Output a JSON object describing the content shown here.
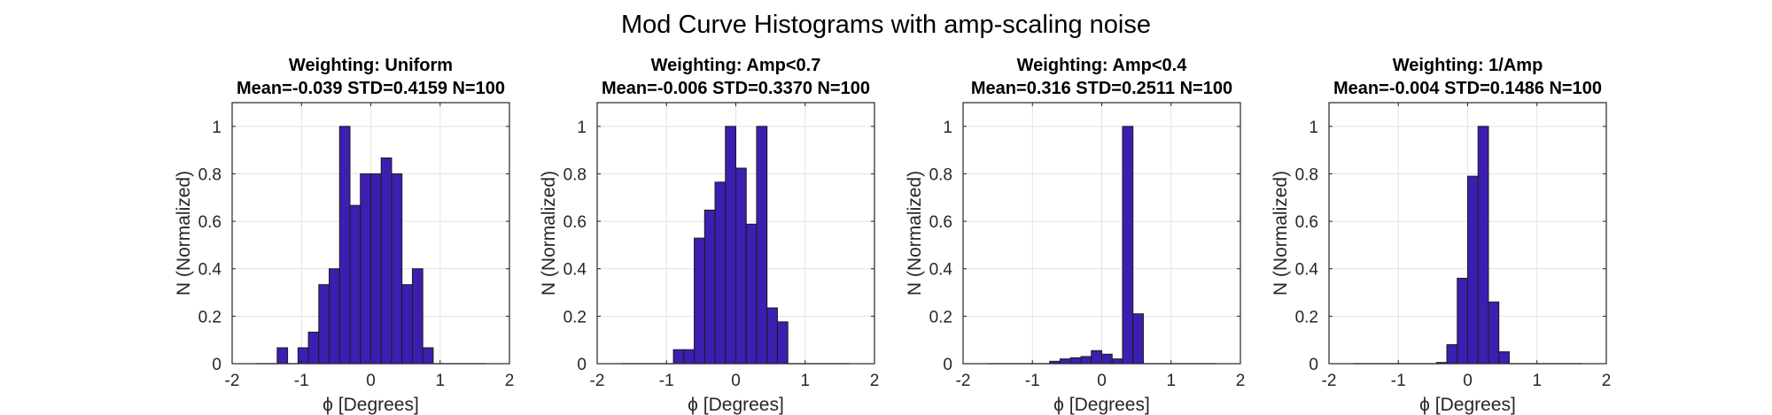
{
  "figure": {
    "title": "Mod Curve Histograms with amp-scaling noise",
    "bar_color": "#3c1fb0",
    "bar_edge": "#1a1a1a"
  },
  "chart_data": [
    {
      "type": "bar",
      "title_line1": "Weighting: Uniform",
      "title_line2": "Mean=-0.039 STD=0.4159 N=100",
      "xlabel": "ϕ [Degrees]",
      "ylabel": "N (Normalized)",
      "xlim": [
        -2,
        2
      ],
      "ylim": [
        0,
        1.1
      ],
      "xticks": [
        "-2",
        "-1",
        "0",
        "1",
        "2"
      ],
      "yticks": [
        "0",
        "0.2",
        "0.4",
        "0.6",
        "0.8",
        "1"
      ],
      "grid": true,
      "bin_edges": [
        -1.65,
        -1.5,
        -1.35,
        -1.2,
        -1.05,
        -0.9,
        -0.75,
        -0.6,
        -0.45,
        -0.3,
        -0.15,
        0.0,
        0.15,
        0.3,
        0.45,
        0.6,
        0.75,
        0.9,
        1.05,
        1.2,
        1.35,
        1.5,
        1.65
      ],
      "values": [
        0,
        0,
        0.067,
        0,
        0.067,
        0.133,
        0.333,
        0.4,
        1.0,
        0.667,
        0.8,
        0.8,
        0.867,
        0.8,
        0.333,
        0.4,
        0.067,
        0,
        0,
        0,
        0,
        0
      ]
    },
    {
      "type": "bar",
      "title_line1": "Weighting: Amp<0.7",
      "title_line2": "Mean=-0.006 STD=0.3370 N=100",
      "xlabel": "ϕ [Degrees]",
      "ylabel": "N (Normalized)",
      "xlim": [
        -2,
        2
      ],
      "ylim": [
        0,
        1.1
      ],
      "xticks": [
        "-2",
        "-1",
        "0",
        "1",
        "2"
      ],
      "yticks": [
        "0",
        "0.2",
        "0.4",
        "0.6",
        "0.8",
        "1"
      ],
      "grid": true,
      "bin_edges": [
        -1.65,
        -1.5,
        -1.35,
        -1.2,
        -1.05,
        -0.9,
        -0.75,
        -0.6,
        -0.45,
        -0.3,
        -0.15,
        0.0,
        0.15,
        0.3,
        0.45,
        0.6,
        0.75,
        0.9,
        1.05,
        1.2,
        1.35,
        1.5,
        1.65
      ],
      "values": [
        0,
        0,
        0,
        0,
        0,
        0.059,
        0.059,
        0.529,
        0.647,
        0.765,
        1.0,
        0.824,
        0.588,
        1.0,
        0.235,
        0.176,
        0,
        0,
        0,
        0,
        0,
        0
      ]
    },
    {
      "type": "bar",
      "title_line1": "Weighting: Amp<0.4",
      "title_line2": "Mean=0.316 STD=0.2511 N=100",
      "xlabel": "ϕ [Degrees]",
      "ylabel": "N (Normalized)",
      "xlim": [
        -2,
        2
      ],
      "ylim": [
        0,
        1.1
      ],
      "xticks": [
        "-2",
        "-1",
        "0",
        "1",
        "2"
      ],
      "yticks": [
        "0",
        "0.2",
        "0.4",
        "0.6",
        "0.8",
        "1"
      ],
      "grid": true,
      "bin_edges": [
        -1.65,
        -1.5,
        -1.35,
        -1.2,
        -1.05,
        -0.9,
        -0.75,
        -0.6,
        -0.45,
        -0.3,
        -0.15,
        0.0,
        0.15,
        0.3,
        0.45,
        0.6,
        0.75,
        0.9,
        1.05,
        1.2,
        1.35,
        1.5,
        1.65
      ],
      "values": [
        0,
        0,
        0,
        0,
        0,
        0,
        0.01,
        0.02,
        0.025,
        0.03,
        0.055,
        0.04,
        0.02,
        1.0,
        0.21,
        0,
        0,
        0,
        0,
        0,
        0,
        0
      ]
    },
    {
      "type": "bar",
      "title_line1": "Weighting: 1/Amp",
      "title_line2": "Mean=-0.004 STD=0.1486 N=100",
      "xlabel": "ϕ [Degrees]",
      "ylabel": "N (Normalized)",
      "xlim": [
        -2,
        2
      ],
      "ylim": [
        0,
        1.1
      ],
      "xticks": [
        "-2",
        "-1",
        "0",
        "1",
        "2"
      ],
      "yticks": [
        "0",
        "0.2",
        "0.4",
        "0.6",
        "0.8",
        "1"
      ],
      "grid": true,
      "bin_edges": [
        -1.65,
        -1.5,
        -1.35,
        -1.2,
        -1.05,
        -0.9,
        -0.75,
        -0.6,
        -0.45,
        -0.3,
        -0.15,
        0.0,
        0.15,
        0.3,
        0.45,
        0.6,
        0.75,
        0.9,
        1.05,
        1.2,
        1.35,
        1.5,
        1.65
      ],
      "values": [
        0,
        0,
        0,
        0,
        0,
        0,
        0,
        0,
        0.005,
        0.08,
        0.36,
        0.79,
        1.0,
        0.26,
        0.05,
        0,
        0,
        0,
        0,
        0,
        0,
        0
      ]
    }
  ]
}
